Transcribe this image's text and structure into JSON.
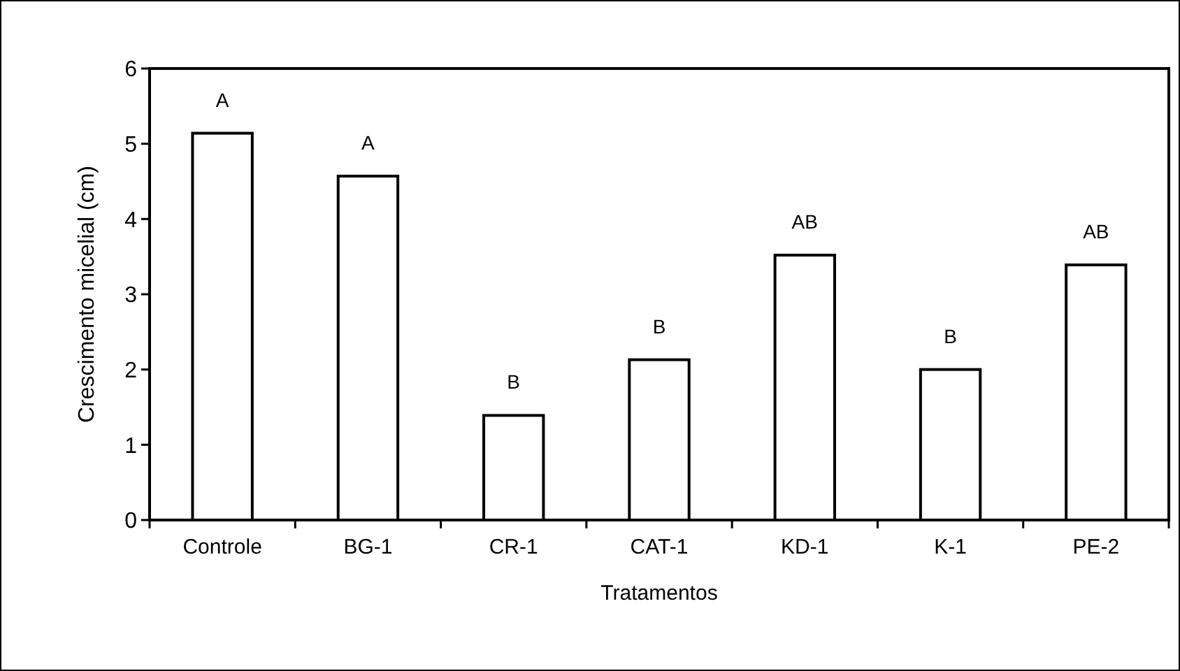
{
  "chart_data": {
    "type": "bar",
    "xlabel": "Tratamentos",
    "ylabel": "Crescimento micelial (cm)",
    "categories": [
      "Controle",
      "BG-1",
      "CR-1",
      "CAT-1",
      "KD-1",
      "K-1",
      "PE-2"
    ],
    "values": [
      5.14,
      4.57,
      1.39,
      2.13,
      3.52,
      2.0,
      3.39
    ],
    "color": "#ffffff",
    "ylim": [
      0,
      6
    ],
    "yticks": [
      0,
      1,
      2,
      3,
      4,
      5,
      6
    ],
    "grid": false,
    "annotations": [
      {
        "text": "A",
        "x": "Controle",
        "y": 5.14
      },
      {
        "text": "A",
        "x": "BG-1",
        "y": 4.57
      },
      {
        "text": "B",
        "x": "CR-1",
        "y": 1.39
      },
      {
        "text": "B",
        "x": "CAT-1",
        "y": 2.13
      },
      {
        "text": "AB",
        "x": "KD-1",
        "y": 3.52
      },
      {
        "text": "B",
        "x": "K-1",
        "y": 2.0
      },
      {
        "text": "AB",
        "x": "PE-2",
        "y": 3.39
      }
    ]
  }
}
